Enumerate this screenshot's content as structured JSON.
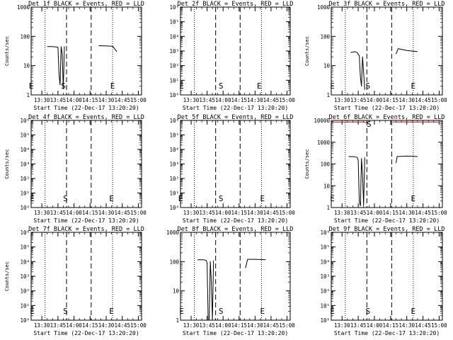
{
  "chart_data": [
    {
      "type": "line",
      "title": "Det 1f BLACK = Events, RED = LLD",
      "ylabel": "Counts/sec",
      "xlabel": "Start Time (22-Dec-17 13:20:20)",
      "y_scale": "log",
      "ylim": [
        1,
        1000
      ],
      "y_ticks": [
        "1",
        "10",
        "100",
        "1000"
      ],
      "x_ticks": [
        "13:30",
        "13:45",
        "14:00",
        "14:15",
        "14:30",
        "14:45",
        "15:00"
      ],
      "markers": [
        {
          "label": "E",
          "time": "13:20"
        },
        {
          "label": "S",
          "time": "13:50"
        },
        {
          "label": "E",
          "time": "14:36"
        }
      ],
      "series": [
        {
          "color": "#000000",
          "x": [
            "13:35",
            "13:39",
            "13:43",
            "13:45",
            "13:46",
            "13:47",
            "13:48",
            "13:49",
            "13:50",
            "13:51"
          ],
          "y": [
            45,
            45,
            44,
            42,
            5,
            2.2,
            45,
            25,
            1.6,
            45
          ]
        },
        {
          "color": "#000000",
          "x": [
            "14:23",
            "14:30",
            "14:36",
            "14:40"
          ],
          "y": [
            48,
            47,
            46,
            30
          ]
        }
      ]
    },
    {
      "type": "line",
      "title": "Det 2f BLACK = Events, RED = LLD",
      "ylabel": "",
      "xlabel": "Start Time (22-Dec-17 13:20:20)",
      "y_scale": "log",
      "ylim": [
        1,
        1000000
      ],
      "y_ticks": [
        "10⁰",
        "10¹",
        "10²",
        "10³",
        "10⁴",
        "10⁵",
        "10⁶"
      ],
      "x_ticks": [
        "13:30",
        "13:45",
        "14:00",
        "14:15",
        "14:30",
        "14:45",
        "15:00"
      ],
      "markers": [
        {
          "label": "E",
          "time": "13:21"
        },
        {
          "label": "S",
          "time": "13:58"
        },
        {
          "label": "E",
          "time": "14:34"
        }
      ],
      "series": []
    },
    {
      "type": "line",
      "title": "Det 3f BLACK = Events, RED = LLD",
      "ylabel": "Counts/sec",
      "xlabel": "Start Time (22-Dec-17 13:20:20)",
      "y_scale": "log",
      "ylim": [
        1,
        1000
      ],
      "y_ticks": [
        "1",
        "10",
        "100",
        "1000"
      ],
      "x_ticks": [
        "13:30",
        "13:45",
        "14:00",
        "14:15",
        "14:30",
        "14:45",
        "15:00"
      ],
      "markers": [
        {
          "label": "E",
          "time": "13:21"
        },
        {
          "label": "S",
          "time": "13:54"
        },
        {
          "label": "E",
          "time": "14:36"
        }
      ],
      "series": [
        {
          "color": "#000000",
          "x": [
            "13:38",
            "13:42",
            "13:44",
            "13:46",
            "13:47",
            "13:48",
            "13:49",
            "13:50",
            "13:51"
          ],
          "y": [
            28,
            30,
            28,
            22,
            4,
            2,
            20,
            6,
            1.5
          ]
        },
        {
          "color": "#000000",
          "x": [
            "14:20",
            "14:22",
            "14:30",
            "14:40"
          ],
          "y": [
            25,
            38,
            33,
            30
          ]
        }
      ]
    },
    {
      "type": "line",
      "title": "Det 4f BLACK = Events, RED = LLD",
      "ylabel": "Counts/sec",
      "xlabel": "Start Time (22-Dec-17 13:20:20)",
      "y_scale": "log",
      "ylim": [
        1,
        1000000
      ],
      "y_ticks": [
        "10⁰",
        "10¹",
        "10²",
        "10³",
        "10⁴",
        "10⁵",
        "10⁶"
      ],
      "x_ticks": [
        "13:30",
        "13:45",
        "14:00",
        "14:15",
        "14:30",
        "14:45",
        "15:00"
      ],
      "markers": [
        {
          "label": "E",
          "time": "13:21"
        },
        {
          "label": "S",
          "time": "13:52"
        },
        {
          "label": "E",
          "time": "14:35"
        }
      ],
      "series": []
    },
    {
      "type": "line",
      "title": "Det 5f BLACK = Events, RED = LLD",
      "ylabel": "",
      "xlabel": "Start Time (22-Dec-17 13:20:20)",
      "y_scale": "log",
      "ylim": [
        1,
        1000000
      ],
      "y_ticks": [
        "10⁰",
        "10¹",
        "10²",
        "10³",
        "10⁴",
        "10⁵",
        "10⁶"
      ],
      "x_ticks": [
        "13:30",
        "13:45",
        "14:00",
        "14:15",
        "14:30",
        "14:45",
        "15:00"
      ],
      "markers": [
        {
          "label": "E",
          "time": "13:20"
        },
        {
          "label": "S",
          "time": "13:58"
        },
        {
          "label": "E",
          "time": "14:37"
        }
      ],
      "series": []
    },
    {
      "type": "line",
      "title": "Det 6f BLACK = Events, RED = LLD",
      "ylabel": "Counts/sec",
      "xlabel": "Start Time (22-Dec-17 13:20:20)",
      "y_scale": "log",
      "ylim": [
        1,
        10000
      ],
      "y_ticks": [
        "1",
        "10",
        "100",
        "1000",
        "10000"
      ],
      "x_ticks": [
        "13:30",
        "13:45",
        "14:00",
        "14:15",
        "14:30",
        "14:45",
        "15:00"
      ],
      "markers": [
        {
          "label": "E",
          "time": "13:21"
        },
        {
          "label": "S",
          "time": "13:55"
        },
        {
          "label": "E",
          "time": "14:36"
        }
      ],
      "series": [
        {
          "color": "#d01010",
          "x": [
            "13:20",
            "13:30",
            "13:40",
            "13:45",
            "13:50",
            "13:53"
          ],
          "y": [
            8500,
            8500,
            8500,
            8500,
            8400,
            8000
          ]
        },
        {
          "color": "#d01010",
          "x": [
            "14:17",
            "14:30",
            "14:45",
            "15:00"
          ],
          "y": [
            8500,
            8500,
            8500,
            8500
          ]
        },
        {
          "color": "#000000",
          "x": [
            "13:36",
            "13:42",
            "13:44",
            "13:45",
            "13:46",
            "13:47",
            "13:48",
            "13:49",
            "13:50",
            "13:51"
          ],
          "y": [
            220,
            215,
            200,
            150,
            2,
            1.2,
            180,
            30,
            1.3,
            200
          ]
        },
        {
          "color": "#000000",
          "x": [
            "14:20",
            "14:21",
            "14:30",
            "14:40"
          ],
          "y": [
            110,
            220,
            230,
            220
          ]
        }
      ]
    },
    {
      "type": "line",
      "title": "Det 7f BLACK = Events, RED = LLD",
      "ylabel": "Counts/sec",
      "xlabel": "Start Time (22-Dec-17 13:20:20)",
      "y_scale": "log",
      "ylim": [
        1,
        1000000
      ],
      "y_ticks": [
        "10⁰",
        "10¹",
        "10²",
        "10³",
        "10⁴",
        "10⁵",
        "10⁶"
      ],
      "x_ticks": [
        "13:30",
        "13:45",
        "14:00",
        "14:15",
        "14:30",
        "14:45",
        "15:00"
      ],
      "markers": [
        {
          "label": "E",
          "time": "13:21"
        },
        {
          "label": "S",
          "time": "13:52"
        },
        {
          "label": "E",
          "time": "14:35"
        }
      ],
      "series": []
    },
    {
      "type": "line",
      "title": "Det 8f BLACK = Events, RED = LLD",
      "ylabel": "",
      "xlabel": "Start Time (22-Dec-17 13:20:20)",
      "y_scale": "log",
      "ylim": [
        1,
        1000
      ],
      "y_ticks": [
        "1",
        "10",
        "100",
        "1000"
      ],
      "x_ticks": [
        "13:30",
        "13:45",
        "14:00",
        "14:15",
        "14:30",
        "14:45",
        "15:00"
      ],
      "markers": [
        {
          "label": "E",
          "time": "13:21"
        },
        {
          "label": "S",
          "time": "13:58"
        },
        {
          "label": "E",
          "time": "14:37"
        }
      ],
      "series": [
        {
          "color": "#000000",
          "x": [
            "13:36",
            "13:42",
            "13:44",
            "13:45",
            "13:46",
            "13:47",
            "13:48",
            "13:49",
            "13:50",
            "13:51"
          ],
          "y": [
            115,
            115,
            110,
            90,
            1,
            1,
            100,
            20,
            1,
            110
          ]
        },
        {
          "color": "#000000",
          "x": [
            "14:21",
            "14:23",
            "14:30",
            "14:40"
          ],
          "y": [
            60,
            120,
            120,
            115
          ]
        }
      ]
    },
    {
      "type": "line",
      "title": "Det 9f BLACK = Events, RED = LLD",
      "ylabel": "",
      "xlabel": "Start Time (22-Dec-17 13:20:20)",
      "y_scale": "log",
      "ylim": [
        1,
        1000000
      ],
      "y_ticks": [
        "10⁰",
        "10¹",
        "10²",
        "10³",
        "10⁴",
        "10⁵",
        "10⁶"
      ],
      "x_ticks": [
        "13:30",
        "13:45",
        "14:00",
        "14:15",
        "14:30",
        "14:45",
        "15:00"
      ],
      "markers": [
        {
          "label": "E",
          "time": "13:21"
        },
        {
          "label": "S",
          "time": "13:54"
        },
        {
          "label": "E",
          "time": "14:36"
        }
      ],
      "series": []
    }
  ]
}
